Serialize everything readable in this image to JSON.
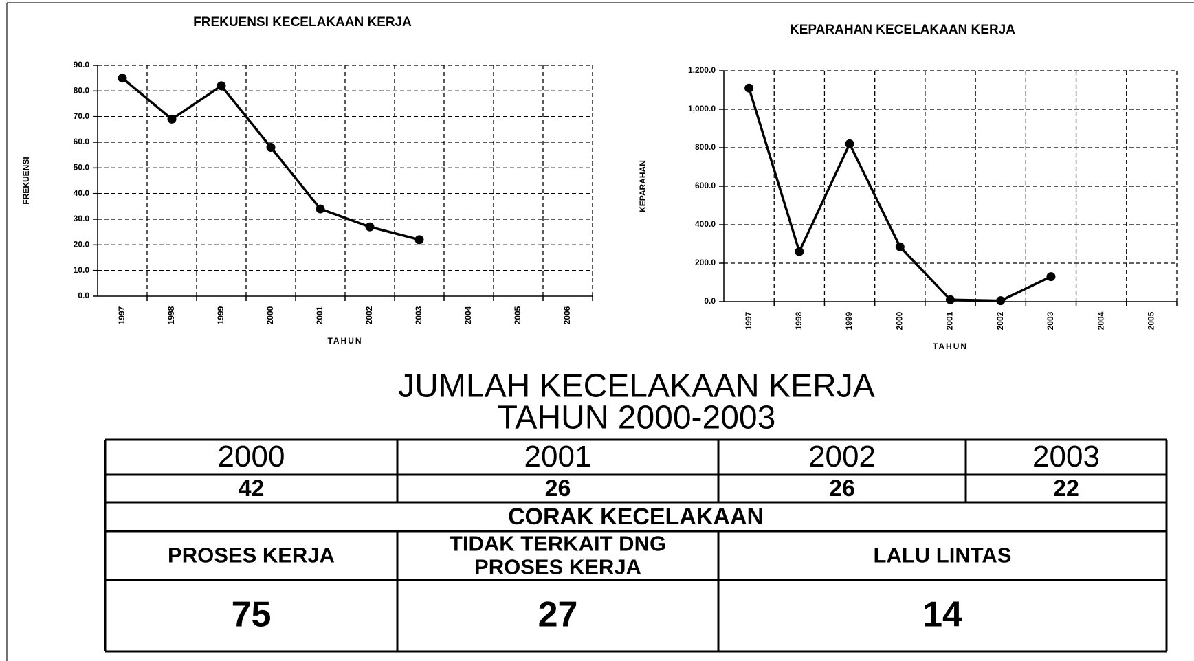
{
  "chart_data": [
    {
      "type": "line",
      "title": "FREKUENSI KECELAKAAN KERJA",
      "ylabel": "FREKUENSI",
      "xlabel": "TAHUN",
      "categories": [
        "1997",
        "1998",
        "1999",
        "2000",
        "2001",
        "2002",
        "2003",
        "2004",
        "2005",
        "2006"
      ],
      "values": [
        85,
        69,
        82,
        58,
        34,
        27,
        22,
        null,
        null,
        null
      ],
      "color": "#000000",
      "ylim": [
        0,
        90
      ],
      "yticks": [
        {
          "value": 0,
          "label": "0.0"
        },
        {
          "value": 10,
          "label": "10.0"
        },
        {
          "value": 20,
          "label": "20.0"
        },
        {
          "value": 30,
          "label": "30.0"
        },
        {
          "value": 40,
          "label": "40.0"
        },
        {
          "value": 50,
          "label": "50.0"
        },
        {
          "value": 60,
          "label": "60.0"
        },
        {
          "value": 70,
          "label": "70.0"
        },
        {
          "value": 80,
          "label": "80.0"
        },
        {
          "value": 90,
          "label": "90.0"
        }
      ],
      "grid": true
    },
    {
      "type": "line",
      "title": "KEPARAHAN KECELAKAAN KERJA",
      "ylabel": "KEPARAHAN",
      "xlabel": "TAHUN",
      "categories": [
        "1997",
        "1998",
        "1999",
        "2000",
        "2001",
        "2002",
        "2003",
        "2004",
        "2005"
      ],
      "values": [
        1110,
        260,
        820,
        285,
        10,
        5,
        130,
        null,
        null
      ],
      "color": "#000000",
      "ylim": [
        0,
        1200
      ],
      "yticks": [
        {
          "value": 0,
          "label": "0.0"
        },
        {
          "value": 200,
          "label": "200.0"
        },
        {
          "value": 400,
          "label": "400.0"
        },
        {
          "value": 600,
          "label": "600.0"
        },
        {
          "value": 800,
          "label": "800.0"
        },
        {
          "value": 1000,
          "label": "1,000.0"
        },
        {
          "value": 1200,
          "label": "1,200.0"
        }
      ],
      "grid": true
    }
  ],
  "table": {
    "title": [
      "JUMLAH KECELAKAAN KERJA",
      "TAHUN 2000-2003"
    ],
    "years": [
      2000,
      2001,
      2002,
      2003
    ],
    "counts": [
      42,
      26,
      26,
      22
    ],
    "section": "CORAK KECELAKAAN",
    "types": [
      [
        "PROSES KERJA"
      ],
      [
        "TIDAK TERKAIT DNG",
        "PROSES KERJA"
      ],
      [
        "LALU LINTAS"
      ]
    ],
    "type_values": [
      75,
      27,
      14
    ]
  }
}
